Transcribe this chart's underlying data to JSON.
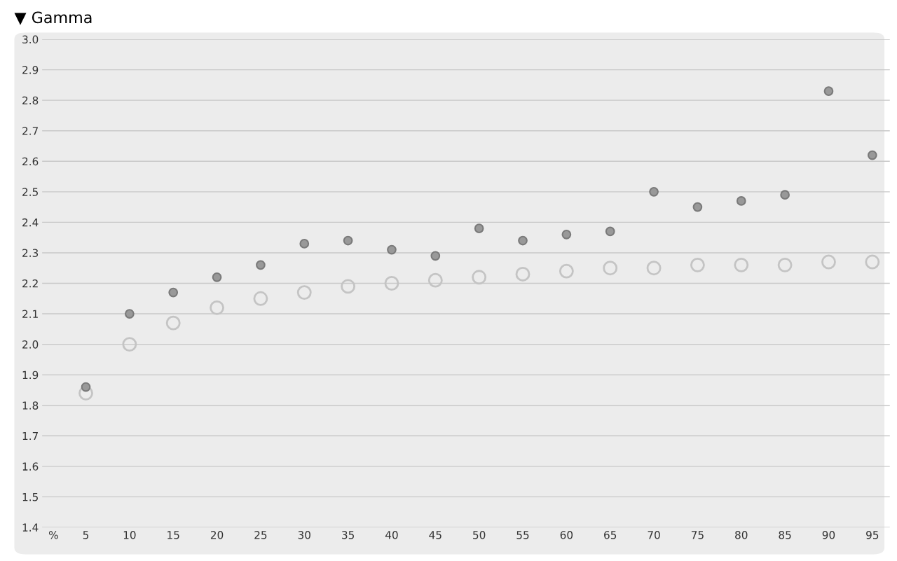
{
  "chart_data": {
    "type": "scatter",
    "title": "▼ Gamma",
    "xlabel": "%",
    "categories": [
      "5",
      "10",
      "15",
      "20",
      "25",
      "30",
      "35",
      "40",
      "45",
      "50",
      "55",
      "60",
      "65",
      "70",
      "75",
      "80",
      "85",
      "90",
      "95"
    ],
    "series": [
      {
        "color": "#999999",
        "values": [
          1.86,
          2.1,
          2.17,
          2.22,
          2.26,
          2.33,
          2.34,
          2.31,
          2.29,
          2.38,
          2.34,
          2.36,
          2.37,
          2.5,
          2.45,
          2.47,
          2.49,
          2.83,
          2.62
        ]
      },
      {
        "color": "#c4c4c4",
        "values": [
          1.84,
          2.0,
          2.07,
          2.12,
          2.15,
          2.17,
          2.19,
          2.2,
          2.21,
          2.22,
          2.23,
          2.24,
          2.25,
          2.25,
          2.26,
          2.26,
          2.26,
          2.27,
          2.27
        ]
      }
    ],
    "ylim": [
      1.4,
      3.0
    ],
    "yticks": [
      {
        "value": 1.4,
        "label": "1.4"
      },
      {
        "value": 1.5,
        "label": "1.5"
      },
      {
        "value": 1.6,
        "label": "1.6"
      },
      {
        "value": 1.7,
        "label": "1.7"
      },
      {
        "value": 1.8,
        "label": "1.8"
      },
      {
        "value": 1.9,
        "label": "1.9"
      },
      {
        "value": 2.0,
        "label": "2.0"
      },
      {
        "value": 2.1,
        "label": "2.1"
      },
      {
        "value": 2.2,
        "label": "2.2"
      },
      {
        "value": 2.3,
        "label": "2.3"
      },
      {
        "value": 2.4,
        "label": "2.4"
      },
      {
        "value": 2.5,
        "label": "2.5"
      },
      {
        "value": 2.6,
        "label": "2.6"
      },
      {
        "value": 2.7,
        "label": "2.7"
      },
      {
        "value": 2.8,
        "label": "2.8"
      },
      {
        "value": 2.9,
        "label": "2.9"
      },
      {
        "value": 3.0,
        "label": "3.0"
      }
    ],
    "grid": "y",
    "marker": "circle",
    "legend": false
  }
}
